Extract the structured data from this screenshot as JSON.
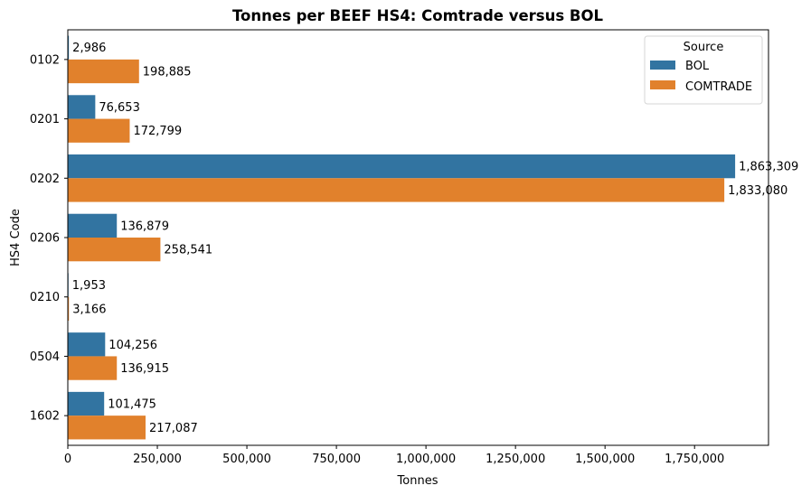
{
  "chart_data": {
    "type": "bar",
    "orientation": "horizontal",
    "title": "Tonnes per BEEF HS4: Comtrade versus BOL",
    "xlabel": "Tonnes",
    "ylabel": "HS4 Code",
    "categories": [
      "0102",
      "0201",
      "0202",
      "0206",
      "0210",
      "0504",
      "1602"
    ],
    "series": [
      {
        "name": "BOL",
        "color": "#3274a1",
        "values": [
          2986,
          76653,
          1863309,
          136879,
          1953,
          104256,
          101475
        ],
        "labels": [
          "2,986",
          "76,653",
          "1,863,309",
          "136,879",
          "1,953",
          "104,256",
          "101,475"
        ]
      },
      {
        "name": "COMTRADE",
        "color": "#e1812c",
        "values": [
          198885,
          172799,
          1833080,
          258541,
          3166,
          136915,
          217087
        ],
        "labels": [
          "198,885",
          "172,799",
          "1,833,080",
          "258,541",
          "3,166",
          "136,915",
          "217,087"
        ]
      }
    ],
    "xlim": [
      0,
      1956474
    ],
    "xticks": [
      0,
      250000,
      500000,
      750000,
      1000000,
      1250000,
      1500000,
      1750000
    ],
    "xtick_labels": [
      "0",
      "250,000",
      "500,000",
      "750,000",
      "1,000,000",
      "1,250,000",
      "1,500,000",
      "1,750,000"
    ],
    "grid": false,
    "legend": {
      "title": "Source",
      "placement": "top-right",
      "entries": [
        "BOL",
        "COMTRADE"
      ]
    }
  }
}
